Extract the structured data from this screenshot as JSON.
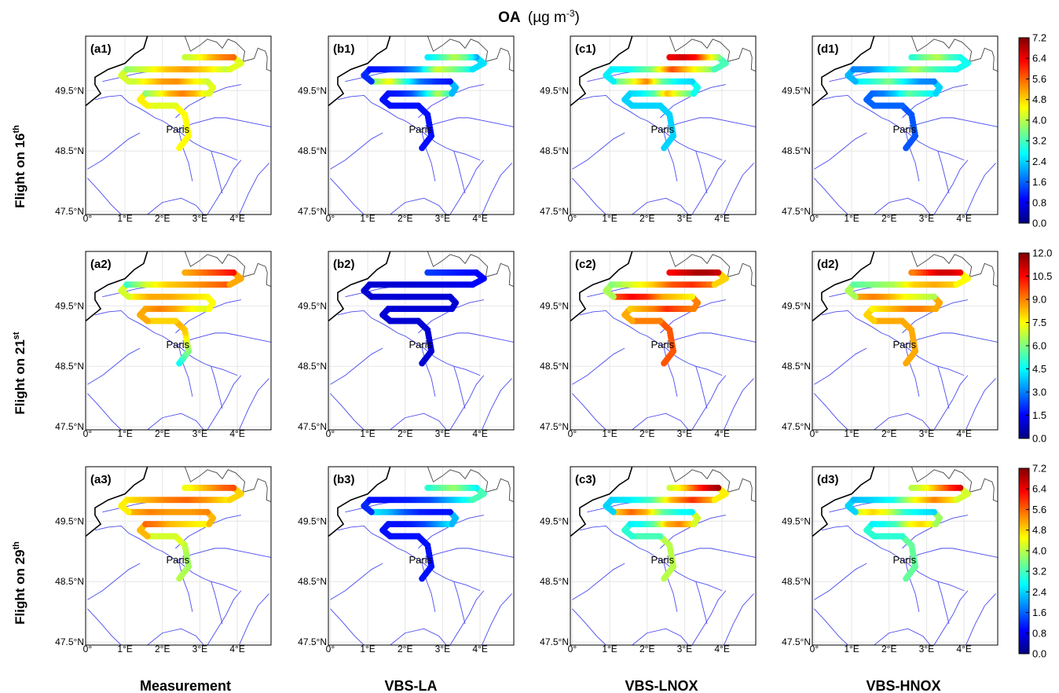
{
  "figure": {
    "title_main": "OA",
    "title_unit": "(µg m",
    "title_exp": "-3",
    "title_close": ")"
  },
  "columns": [
    "Measurement",
    "VBS-LA",
    "VBS-LNOX",
    "VBS-HNOX"
  ],
  "rows": [
    {
      "prefix": "Flight on 16",
      "sup": "th"
    },
    {
      "prefix": "Flight on 21",
      "sup": "st"
    },
    {
      "prefix": "Flight on 29",
      "sup": "th"
    }
  ],
  "panel_labels": [
    [
      "(a1)",
      "(b1)",
      "(c1)",
      "(d1)"
    ],
    [
      "(a2)",
      "(b2)",
      "(c2)",
      "(d2)"
    ],
    [
      "(a3)",
      "(b3)",
      "(c3)",
      "(d3)"
    ]
  ],
  "city_label": "Paris",
  "colormap": [
    "#00007f",
    "#0000ff",
    "#007fff",
    "#00ffff",
    "#7fff7f",
    "#ffff00",
    "#ff7f00",
    "#ff0000",
    "#7f0000"
  ],
  "chart_data": {
    "type": "map",
    "x_ticks": [
      "0°",
      "1°E",
      "2°E",
      "3°E",
      "4°E"
    ],
    "y_ticks": [
      "47.5°N",
      "48.5°N",
      "49.5°N"
    ],
    "colorbars": [
      {
        "ticks": [
          "7.2",
          "6.4",
          "5.6",
          "4.8",
          "4.0",
          "3.2",
          "2.4",
          "1.6",
          "0.8",
          "0.0"
        ],
        "vmin": 0,
        "vmax": 7.2
      },
      {
        "ticks": [
          "12.0",
          "10.5",
          "9.0",
          "7.5",
          "6.0",
          "4.5",
          "3.0",
          "1.5",
          "0.0"
        ],
        "vmin": 0,
        "vmax": 12
      },
      {
        "ticks": [
          "7.2",
          "6.4",
          "5.6",
          "4.8",
          "4.0",
          "3.2",
          "2.4",
          "1.6",
          "0.8",
          "0.0"
        ],
        "vmin": 0,
        "vmax": 7.2
      }
    ],
    "flight_segments": [
      [
        [
          2.45,
          48.55
        ],
        [
          2.7,
          48.75
        ],
        [
          2.6,
          49.1
        ],
        [
          2.35,
          49.25
        ]
      ],
      [
        [
          2.35,
          49.25
        ],
        [
          1.6,
          49.25
        ]
      ],
      [
        [
          1.6,
          49.25
        ],
        [
          1.4,
          49.35
        ],
        [
          1.55,
          49.45
        ]
      ],
      [
        [
          1.55,
          49.45
        ],
        [
          3.25,
          49.45
        ]
      ],
      [
        [
          3.25,
          49.45
        ],
        [
          3.35,
          49.55
        ],
        [
          3.2,
          49.65
        ]
      ],
      [
        [
          3.2,
          49.65
        ],
        [
          1.1,
          49.65
        ]
      ],
      [
        [
          1.1,
          49.65
        ],
        [
          0.9,
          49.75
        ],
        [
          1.05,
          49.85
        ]
      ],
      [
        [
          1.05,
          49.85
        ],
        [
          3.8,
          49.85
        ]
      ],
      [
        [
          3.8,
          49.85
        ],
        [
          4.1,
          49.95
        ],
        [
          3.9,
          50.05
        ]
      ],
      [
        [
          3.9,
          50.05
        ],
        [
          2.6,
          50.05
        ]
      ]
    ],
    "panels": [
      [
        {
          "vmax": 7.2,
          "values": [
            4.5,
            4.3,
            4.6,
            [
              3.6,
              4.2,
              5.0,
              5.4,
              5.0,
              4.2
            ],
            4.3,
            [
              4.1,
              4.6,
              5.3,
              5.2,
              4.6,
              4.0
            ],
            4.2,
            [
              3.7,
              4.2,
              4.9,
              5.2,
              4.7,
              4.0
            ],
            4.3,
            [
              5.6,
              5.4,
              5.0,
              4.4,
              4.1
            ]
          ]
        },
        {
          "vmax": 7.2,
          "values": [
            1.0,
            1.0,
            1.0,
            [
              1.0,
              1.1,
              1.5,
              2.5,
              4.0,
              3.0
            ],
            2.2,
            [
              1.0,
              1.2,
              1.7,
              3.0,
              4.5,
              3.5
            ],
            1.2,
            [
              1.0,
              1.1,
              1.4,
              2.2,
              4.2,
              3.6,
              2.8
            ],
            2.5,
            [
              2.0,
              3.4,
              4.0,
              3.2,
              2.6
            ]
          ]
        },
        {
          "vmax": 7.2,
          "values": [
            2.4,
            2.4,
            2.4,
            [
              2.4,
              2.6,
              3.3,
              5.0,
              4.0,
              3.2
            ],
            2.8,
            [
              2.4,
              2.6,
              3.4,
              5.4,
              4.2,
              3.2
            ],
            2.6,
            [
              2.6,
              2.8,
              3.6,
              5.8,
              4.6,
              3.6
            ],
            3.2,
            [
              3.6,
              4.8,
              6.2,
              6.6,
              6.4
            ]
          ]
        },
        {
          "vmax": 7.2,
          "values": [
            1.5,
            1.6,
            1.6,
            [
              1.6,
              1.8,
              2.4,
              3.4,
              3.0,
              2.6
            ],
            2.4,
            [
              1.8,
              1.9,
              2.6,
              3.6,
              3.0,
              2.6
            ],
            2.2,
            [
              1.8,
              2.0,
              2.8,
              4.0,
              3.2,
              2.8
            ],
            2.8,
            [
              2.8,
              3.2,
              4.0,
              3.6,
              3.0
            ]
          ]
        }
      ],
      [
        {
          "vmax": 12,
          "values": [
            [
              4.5,
              6.0,
              8.0,
              8.5
            ],
            8.0,
            8.5,
            [
              8.5,
              9.0,
              8.5,
              7.5,
              7.0
            ],
            7.5,
            [
              7.5,
              8.0,
              8.5,
              8.5,
              7.5
            ],
            7.0,
            [
              5.0,
              7.0,
              8.0,
              8.5,
              9.0,
              9.5
            ],
            8.5,
            [
              10.5,
              10.0,
              9.5,
              9.0,
              8.5
            ]
          ]
        },
        {
          "vmax": 12,
          "values": [
            1.0,
            1.0,
            1.0,
            1.0,
            1.0,
            1.0,
            1.0,
            [
              1.0,
              1.0,
              1.0,
              1.1,
              1.2,
              1.3
            ],
            1.5,
            [
              1.5,
              1.6,
              1.8,
              2.0,
              2.2
            ]
          ]
        },
        {
          "vmax": 12,
          "values": [
            [
              9.5,
              9.5,
              9.5,
              9.5
            ],
            9.0,
            8.5,
            [
              8.0,
              8.5,
              9.0,
              10.0,
              9.5,
              9.0
            ],
            9.0,
            [
              7.5,
              8.0,
              8.5,
              10.0,
              10.5,
              9.5
            ],
            6.5,
            [
              6.0,
              7.0,
              8.0,
              9.5,
              10.0,
              9.0
            ],
            8.0,
            [
              11.0,
              11.5,
              11.5,
              11.0,
              10.5
            ]
          ]
        },
        {
          "vmax": 12,
          "values": [
            [
              8.5,
              8.5,
              8.5,
              8.5
            ],
            8.5,
            8.0,
            [
              7.5,
              8.0,
              8.5,
              9.0,
              9.0,
              8.5
            ],
            8.5,
            [
              6.5,
              7.0,
              7.5,
              8.5,
              9.0,
              8.5
            ],
            6.5,
            [
              5.5,
              6.0,
              6.5,
              8.0,
              8.5,
              8.0
            ],
            7.5,
            [
              10.5,
              11.0,
              11.0,
              10.0,
              9.0
            ]
          ]
        }
      ],
      [
        {
          "vmax": 7.2,
          "values": [
            [
              4.0,
              3.8,
              4.4
            ],
            4.2,
            5.0,
            [
              5.6,
              5.4,
              5.0,
              4.8,
              4.6,
              4.5
            ],
            5.0,
            [
              5.4,
              5.2,
              5.2,
              5.4,
              5.0
            ],
            4.6,
            [
              4.6,
              5.0,
              5.4,
              5.6,
              5.2,
              4.6
            ],
            4.8,
            [
              5.8,
              5.6,
              5.2,
              4.8,
              4.4
            ]
          ]
        },
        {
          "vmax": 7.2,
          "values": [
            1.0,
            1.0,
            1.0,
            [
              1.0,
              1.0,
              1.1,
              1.4,
              2.0,
              2.6
            ],
            2.2,
            [
              1.0,
              1.0,
              1.1,
              1.5,
              2.2,
              2.6
            ],
            1.2,
            [
              1.0,
              1.0,
              1.1,
              1.4,
              2.2,
              3.0
            ],
            3.2,
            [
              2.6,
              3.2,
              3.8,
              3.4,
              3.0
            ]
          ]
        },
        {
          "vmax": 7.2,
          "values": [
            4.0,
            3.2,
            3.0,
            [
              2.6,
              2.8,
              3.4,
              5.0,
              5.4,
              4.6
            ],
            4.2,
            [
              2.6,
              2.8,
              3.4,
              5.0,
              5.6,
              4.8
            ],
            2.4,
            [
              2.4,
              2.6,
              3.2,
              5.0,
              6.0,
              5.0
            ],
            4.6,
            [
              7.0,
              6.6,
              5.8,
              4.8,
              4.2
            ]
          ]
        },
        {
          "vmax": 7.2,
          "values": [
            3.4,
            3.0,
            3.0,
            [
              2.6,
              2.8,
              3.2,
              4.4,
              4.8,
              4.2
            ],
            3.8,
            [
              2.4,
              2.6,
              3.0,
              4.2,
              4.8,
              4.2
            ],
            2.4,
            [
              2.2,
              2.4,
              2.8,
              4.4,
              5.4,
              4.6
            ],
            4.2,
            [
              6.6,
              6.0,
              5.2,
              4.4,
              4.0
            ]
          ]
        }
      ]
    ]
  }
}
